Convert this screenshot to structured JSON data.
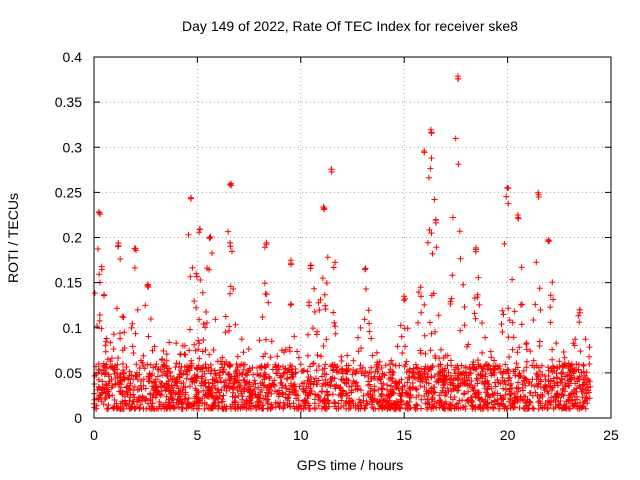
{
  "chart_data": {
    "type": "scatter",
    "title": "Day 149 of 2022, Rate Of TEC Index for receiver ske8",
    "xlabel": "GPS time / hours",
    "ylabel": "ROTI / TECUs",
    "xlim": [
      0,
      25
    ],
    "ylim": [
      0,
      0.4
    ],
    "x_ticks": [
      0,
      5,
      10,
      15,
      20,
      25
    ],
    "x_tick_labels": [
      "0",
      "5",
      "10",
      "15",
      "20",
      "25"
    ],
    "y_ticks": [
      0,
      0.05,
      0.1,
      0.15,
      0.2,
      0.25,
      0.3,
      0.35,
      0.4
    ],
    "y_tick_labels": [
      "0",
      "0.05",
      "0.1",
      "0.15",
      "0.2",
      "0.25",
      "0.3",
      "0.35",
      "0.4"
    ],
    "grid": true,
    "marker": "+",
    "series_color": "#ff0000",
    "x_data_range": [
      0,
      24
    ],
    "baseline_band": [
      0.01,
      0.06
    ],
    "envelope_peaks": [
      {
        "x": 0.25,
        "y": 0.23
      },
      {
        "x": 1.2,
        "y": 0.195
      },
      {
        "x": 2.0,
        "y": 0.19
      },
      {
        "x": 2.6,
        "y": 0.15
      },
      {
        "x": 4.7,
        "y": 0.245
      },
      {
        "x": 5.1,
        "y": 0.21
      },
      {
        "x": 5.6,
        "y": 0.205
      },
      {
        "x": 6.6,
        "y": 0.26
      },
      {
        "x": 8.3,
        "y": 0.195
      },
      {
        "x": 9.5,
        "y": 0.175
      },
      {
        "x": 10.5,
        "y": 0.17
      },
      {
        "x": 11.1,
        "y": 0.235
      },
      {
        "x": 11.5,
        "y": 0.278
      },
      {
        "x": 13.1,
        "y": 0.17
      },
      {
        "x": 15.0,
        "y": 0.135
      },
      {
        "x": 16.0,
        "y": 0.3
      },
      {
        "x": 16.3,
        "y": 0.32
      },
      {
        "x": 16.5,
        "y": 0.22
      },
      {
        "x": 17.6,
        "y": 0.38
      },
      {
        "x": 18.5,
        "y": 0.19
      },
      {
        "x": 20.0,
        "y": 0.26
      },
      {
        "x": 20.5,
        "y": 0.227
      },
      {
        "x": 21.5,
        "y": 0.25
      },
      {
        "x": 22.0,
        "y": 0.2
      },
      {
        "x": 23.5,
        "y": 0.12
      }
    ]
  }
}
